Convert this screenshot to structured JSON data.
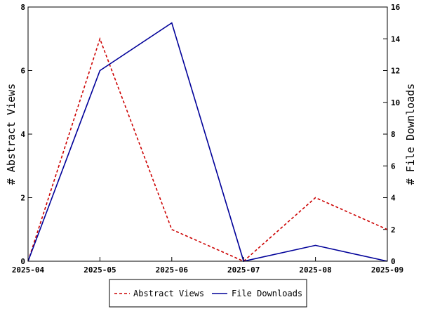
{
  "chart_data": {
    "type": "line",
    "x": [
      "2025-04",
      "2025-05",
      "2025-06",
      "2025-07",
      "2025-08",
      "2025-09"
    ],
    "series": [
      {
        "name": "Abstract Views",
        "axis": "left",
        "values": [
          0,
          7,
          1,
          0,
          2,
          1
        ],
        "color": "#cc0000",
        "style": "dashed"
      },
      {
        "name": "File Downloads",
        "axis": "right",
        "values": [
          0,
          12,
          15,
          0,
          1,
          0
        ],
        "color": "#000099",
        "style": "solid"
      }
    ],
    "ylabel_left": "# Abstract Views",
    "ylabel_right": "# File Downloads",
    "ylim_left": [
      0,
      8
    ],
    "ylim_right": [
      0,
      16
    ],
    "yticks_left": [
      "0",
      "2",
      "4",
      "6",
      "8"
    ],
    "yticks_right": [
      "0",
      "2",
      "4",
      "6",
      "8",
      "10",
      "12",
      "14",
      "16"
    ],
    "grid": false,
    "legend_position": "bottom"
  }
}
